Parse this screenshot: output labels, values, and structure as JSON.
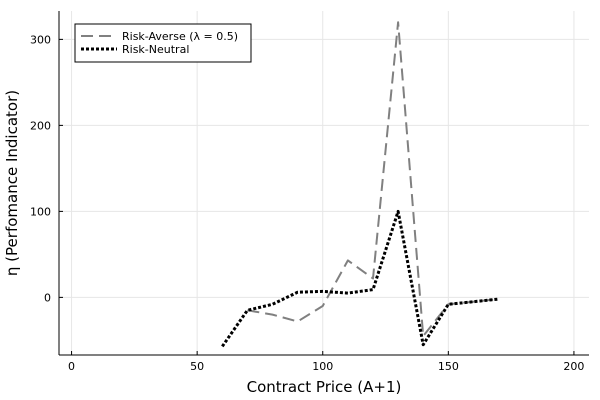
{
  "chart_data": {
    "type": "line",
    "title": "",
    "xlabel": "Contract Price (A+1)",
    "ylabel": "η (Perfomance Indicator)",
    "xlim": [
      -5,
      206
    ],
    "ylim": [
      -67,
      333
    ],
    "xticks": [
      0,
      50,
      100,
      150,
      200
    ],
    "yticks": [
      0,
      100,
      200,
      300
    ],
    "grid": true,
    "legend_position": "top-left",
    "series": [
      {
        "name": "Risk-Averse (λ = 0.5)",
        "color": "#808080",
        "style": "dashed",
        "x": [
          70,
          80,
          90,
          100,
          110,
          120,
          130,
          140,
          150,
          160,
          170
        ],
        "y": [
          -15,
          -20,
          -28,
          -10,
          43,
          22,
          320,
          -45,
          -8,
          -5,
          -2
        ]
      },
      {
        "name": "Risk-Neutral",
        "color": "#000000",
        "style": "dotted",
        "x": [
          60,
          70,
          80,
          90,
          100,
          110,
          120,
          130,
          140,
          150,
          160,
          170
        ],
        "y": [
          -57,
          -15,
          -8,
          6,
          7,
          5,
          9,
          100,
          -55,
          -8,
          -5,
          -2
        ]
      }
    ]
  }
}
